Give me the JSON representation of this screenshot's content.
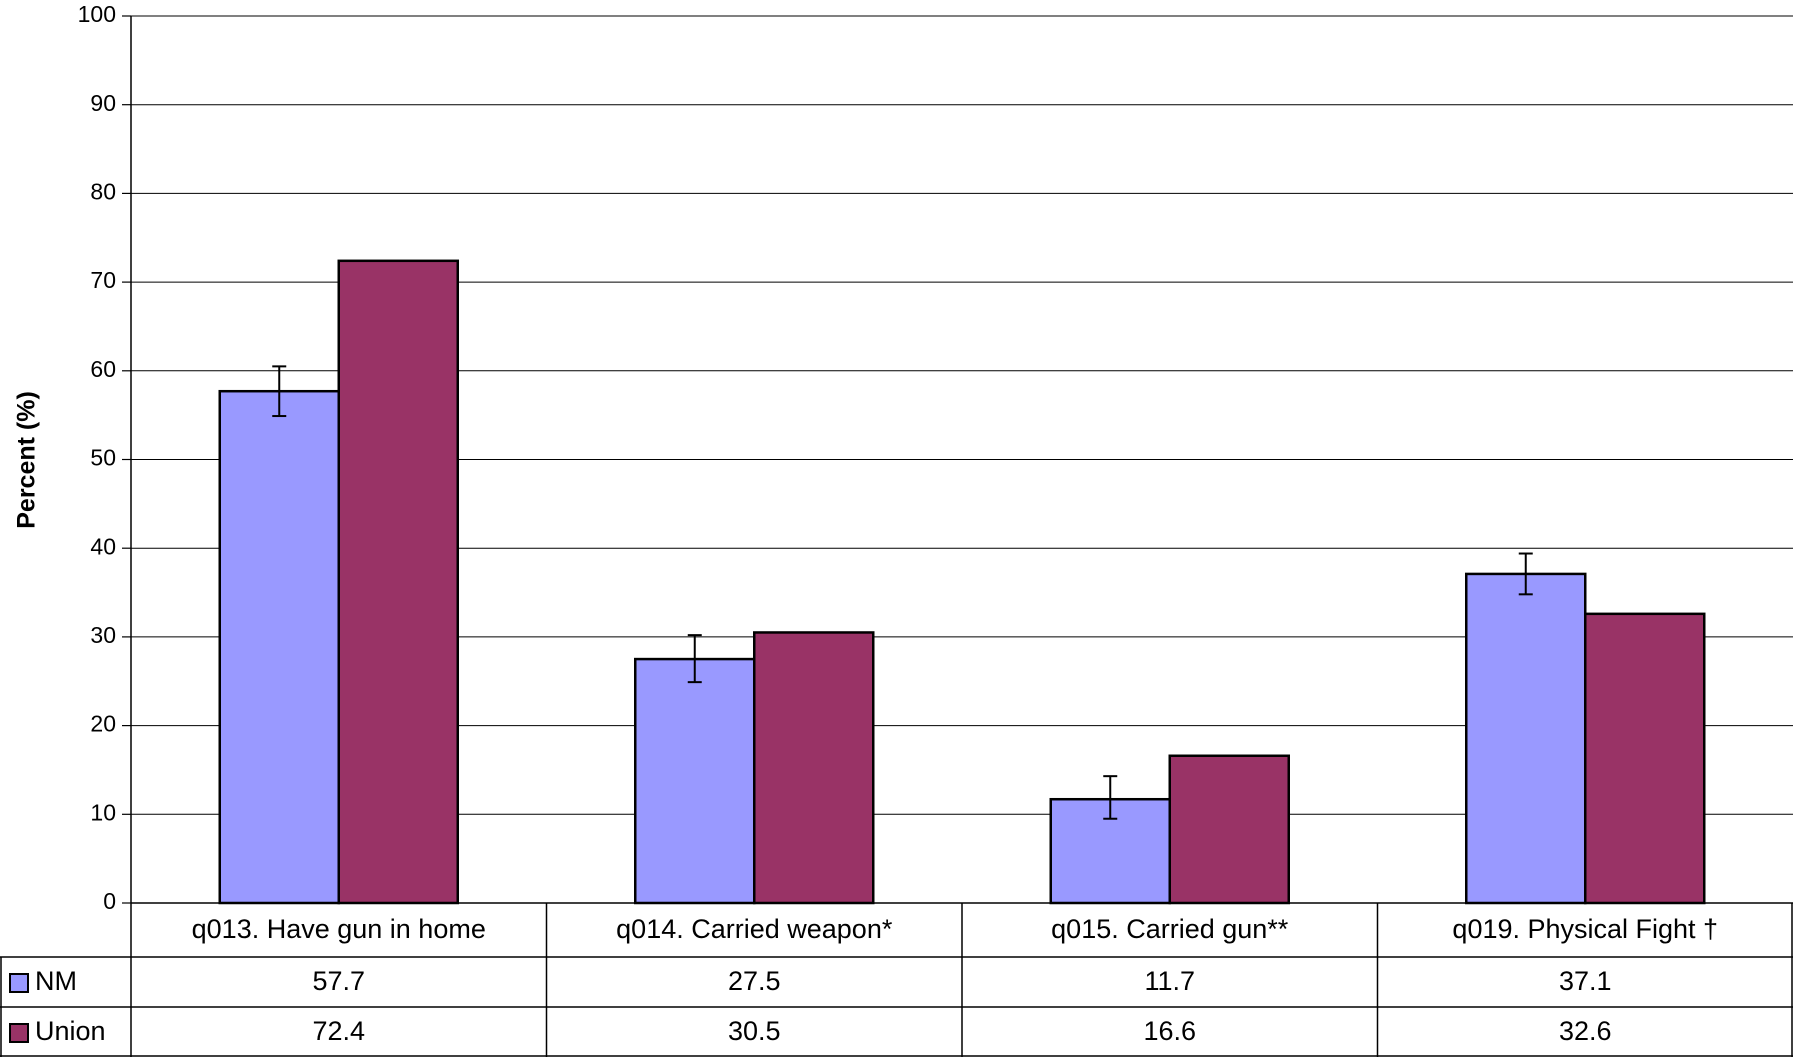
{
  "chart_data": {
    "type": "bar",
    "title": "",
    "ylabel": "Percent (%)",
    "ylim": [
      0,
      100
    ],
    "yticks": [
      0,
      10,
      20,
      30,
      40,
      50,
      60,
      70,
      80,
      90,
      100
    ],
    "grid": true,
    "legend_placement": "data-table",
    "categories": [
      "q013. Have gun in home",
      "q014. Carried weapon*",
      "q015. Carried gun**",
      "q019. Physical Fight †"
    ],
    "series": [
      {
        "name": "NM",
        "color": "#9999FF",
        "values": [
          57.7,
          27.5,
          11.7,
          37.1
        ],
        "value_labels": [
          "57.7",
          "27.5",
          "11.7",
          "37.1"
        ],
        "error_low": [
          54.9,
          24.9,
          9.5,
          34.8
        ],
        "error_high": [
          60.5,
          30.2,
          14.3,
          39.4
        ]
      },
      {
        "name": "Union",
        "color": "#993366",
        "values": [
          72.4,
          30.5,
          16.6,
          32.6
        ],
        "value_labels": [
          "72.4",
          "30.5",
          "16.6",
          "32.6"
        ]
      }
    ]
  }
}
